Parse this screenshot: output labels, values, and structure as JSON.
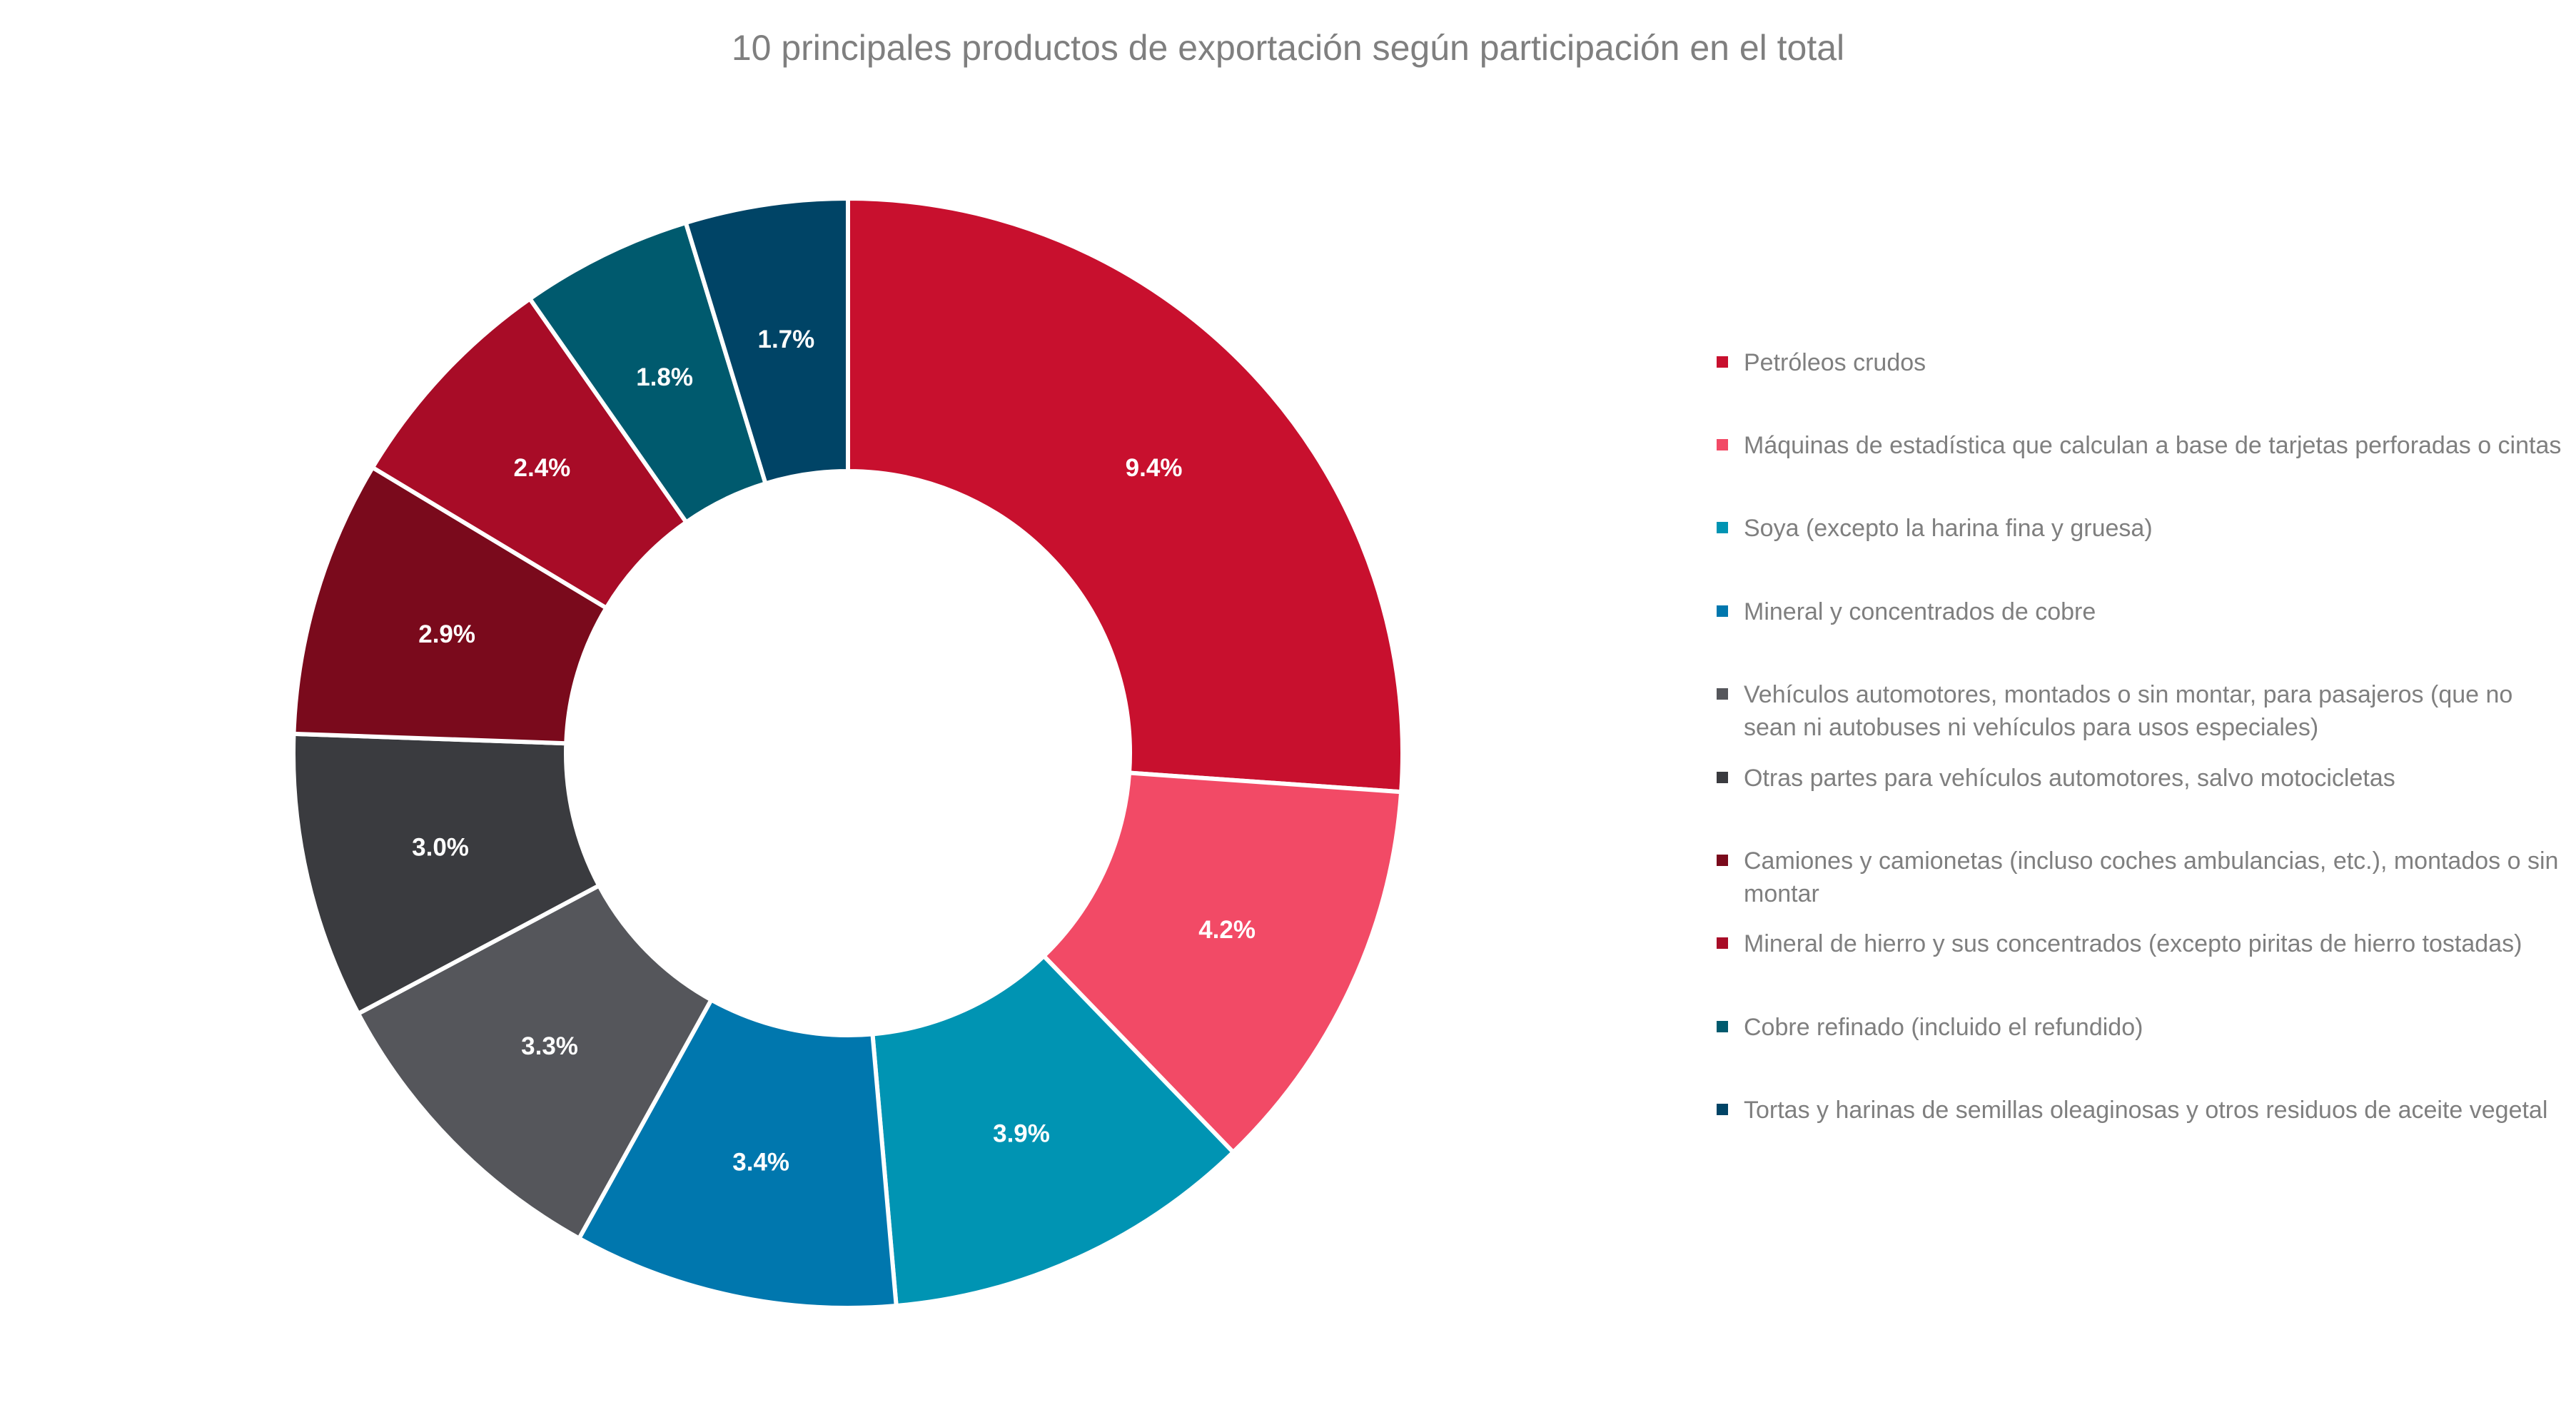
{
  "chart_data": {
    "type": "pie",
    "variant": "donut",
    "title": "10 principales productos de exportación según participación en el total",
    "legend_position": "right",
    "slices": [
      {
        "label": "Petróleos crudos",
        "value": 9.4,
        "display": "9.4%",
        "color": "#C8102E"
      },
      {
        "label": "Máquinas de estadística que calculan a base de tarjetas perforadas o cintas",
        "value": 4.2,
        "display": "4.2%",
        "color": "#F24A66"
      },
      {
        "label": "Soya (excepto la harina fina y gruesa)",
        "value": 3.9,
        "display": "3.9%",
        "color": "#0094B3"
      },
      {
        "label": "Mineral y concentrados de cobre",
        "value": 3.4,
        "display": "3.4%",
        "color": "#0077AE"
      },
      {
        "label": "Vehículos automotores, montados o sin montar, para pasajeros (que no sean ni autobuses ni vehículos para usos especiales)",
        "value": 3.3,
        "display": "3.3%",
        "color": "#55565B"
      },
      {
        "label": "Otras partes para vehículos automotores, salvo motocicletas",
        "value": 3.0,
        "display": "3.0%",
        "color": "#3A3B3F"
      },
      {
        "label": "Camiones y camionetas (incluso coches ambulancias, etc.), montados o sin montar",
        "value": 2.9,
        "display": "2.9%",
        "color": "#7A0A1C"
      },
      {
        "label": "Mineral de hierro y sus concentrados (excepto piritas de hierro tostadas)",
        "value": 2.4,
        "display": "2.4%",
        "color": "#A80C27"
      },
      {
        "label": "Cobre refinado (incluido el refundido)",
        "value": 1.8,
        "display": "1.8%",
        "color": "#005A6E"
      },
      {
        "label": "Tortas y harinas de semillas oleaginosas y otros residuos de aceite vegetal",
        "value": 1.7,
        "display": "1.7%",
        "color": "#004466"
      }
    ]
  }
}
